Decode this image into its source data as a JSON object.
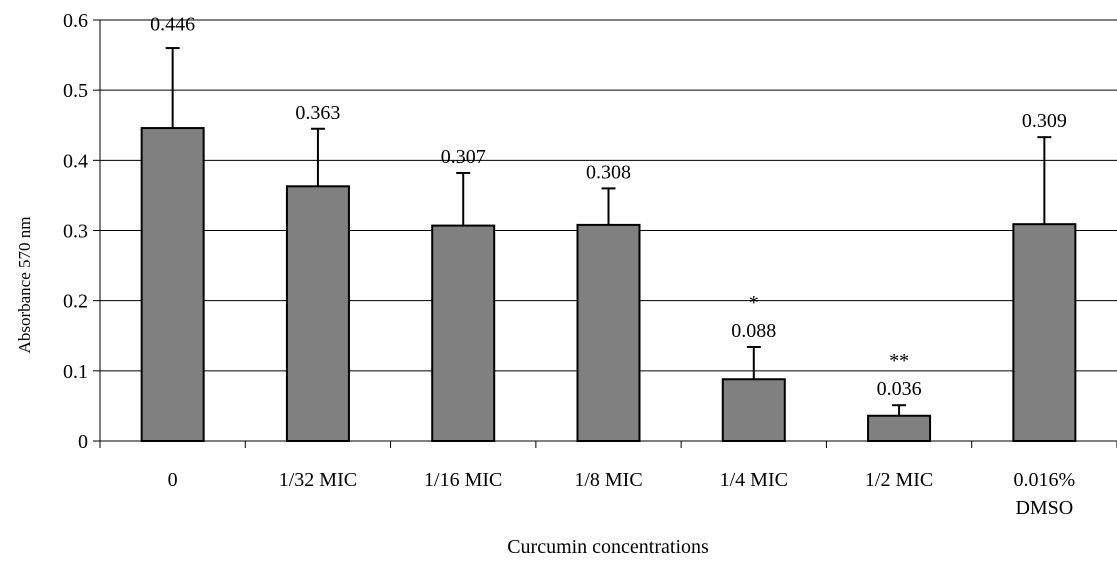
{
  "chart_data": {
    "type": "bar",
    "title": "",
    "xlabel": "Curcumin concentrations",
    "ylabel": "Absorbance 570 nm",
    "ylim": [
      0,
      0.6
    ],
    "yticks": [
      "0",
      "0.1",
      "0.2",
      "0.3",
      "0.4",
      "0.5",
      "0.6"
    ],
    "grid": true,
    "categories": [
      [
        "0"
      ],
      [
        "1/32 MIC"
      ],
      [
        "1/16 MIC"
      ],
      [
        "1/8 MIC"
      ],
      [
        "1/4 MIC"
      ],
      [
        "1/2 MIC"
      ],
      [
        "0.016%",
        "DMSO"
      ]
    ],
    "values": [
      0.446,
      0.363,
      0.307,
      0.308,
      0.088,
      0.036,
      0.309
    ],
    "value_labels": [
      "0.446",
      "0.363",
      "0.307",
      "0.308",
      "0.088",
      "0.036",
      "0.309"
    ],
    "error_upper": [
      0.114,
      0.082,
      0.075,
      0.052,
      0.046,
      0.015,
      0.124
    ],
    "significance": [
      "",
      "",
      "",
      "",
      "*",
      "**",
      ""
    ],
    "bar_color": "#808080"
  }
}
